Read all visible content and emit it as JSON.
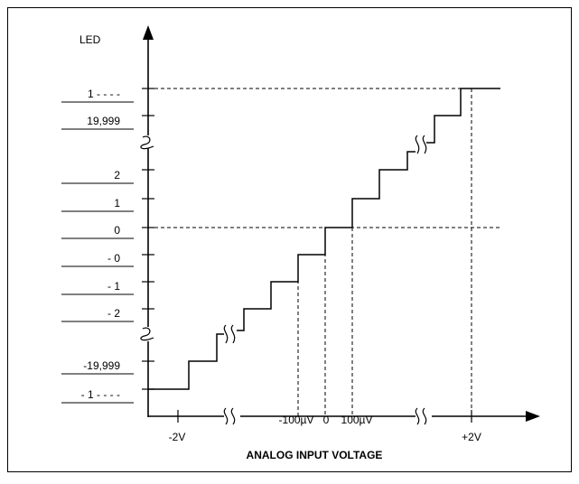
{
  "chart_data": {
    "type": "line",
    "title": "",
    "xlabel": "ANALOG INPUT VOLTAGE",
    "ylabel": "LED",
    "x_ticks": [
      "-2V",
      "-100µV",
      "0",
      "100µV",
      "+2V"
    ],
    "y_ticks": [
      "1 - - - -",
      "19,999",
      "2",
      "1",
      "0",
      "- 0",
      "- 1",
      "- 2",
      "-19,999",
      "- 1 - - - -"
    ],
    "series": [
      {
        "name": "",
        "description_of_shape": "staircase transfer function with axis breaks",
        "steps": [
          {
            "led": "- 1 - - - -",
            "from": "",
            "to": "-2V"
          },
          {
            "led": "-19,999",
            "from": "-2V",
            "to": ""
          },
          {
            "led": "- 2",
            "from": "",
            "to": ""
          },
          {
            "led": "- 1",
            "from": "",
            "to": "-100µV"
          },
          {
            "led": "- 0",
            "from": "-100µV",
            "to": "0"
          },
          {
            "led": "0",
            "from": "0",
            "to": "100µV"
          },
          {
            "led": "1",
            "from": "100µV",
            "to": ""
          },
          {
            "led": "2",
            "from": "",
            "to": ""
          },
          {
            "led": "19,999",
            "from": "",
            "to": "+2V"
          },
          {
            "led": "1 - - - -",
            "from": "+2V",
            "to": ""
          }
        ]
      }
    ],
    "grid": false,
    "axis_breaks": true
  }
}
